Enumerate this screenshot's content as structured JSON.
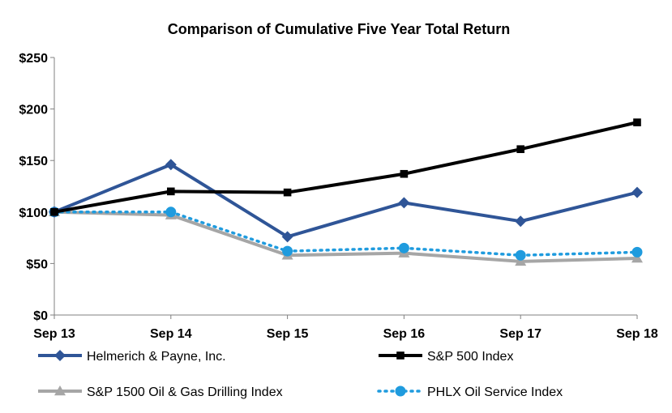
{
  "chart_data": {
    "type": "line",
    "title": "Comparison of Cumulative Five Year Total Return",
    "xlabel": "",
    "ylabel": "",
    "categories": [
      "Sep 13",
      "Sep 14",
      "Sep 15",
      "Sep 16",
      "Sep 17",
      "Sep 18"
    ],
    "y_ticks": [
      "$0",
      "$50",
      "$100",
      "$150",
      "$200",
      "$250"
    ],
    "ylim": [
      0,
      250
    ],
    "grid": false,
    "legend_position": "bottom",
    "series": [
      {
        "name": "Helmerich & Payne, Inc.",
        "values": [
          100,
          146,
          76,
          109,
          91,
          119
        ],
        "color": "#2F5597",
        "marker": "diamond",
        "dash": "solid"
      },
      {
        "name": "S&P 500 Index",
        "values": [
          100,
          120,
          119,
          137,
          161,
          187
        ],
        "color": "#000000",
        "marker": "square",
        "dash": "solid"
      },
      {
        "name": "S&P 1500 Oil & Gas Drilling Index",
        "values": [
          100,
          97,
          58,
          60,
          52,
          55
        ],
        "color": "#A6A6A6",
        "marker": "triangle",
        "dash": "solid"
      },
      {
        "name": "PHLX Oil Service Index",
        "values": [
          100,
          100,
          62,
          65,
          58,
          61
        ],
        "color": "#1F9BDE",
        "marker": "circle",
        "dash": "dotted"
      }
    ]
  }
}
